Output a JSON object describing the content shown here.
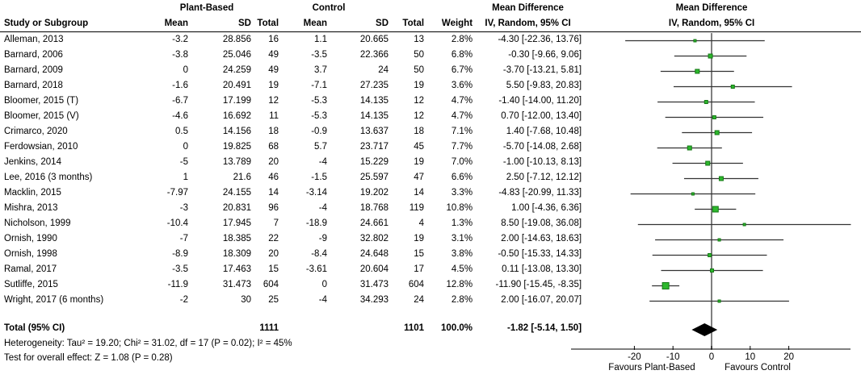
{
  "header": {
    "group1": "Plant-Based",
    "group2": "Control",
    "col_study": "Study or Subgroup",
    "col_mean": "Mean",
    "col_sd": "SD",
    "col_total": "Total",
    "col_weight": "Weight",
    "md_title": "Mean Difference",
    "md_sub": "IV, Random, 95% CI"
  },
  "chart_data": {
    "type": "forest",
    "effect_measure": "Mean Difference",
    "method": "IV, Random, 95% CI",
    "studies": [
      {
        "name": "Alleman, 2013",
        "mean1": "-3.2",
        "sd1": "28.856",
        "n1": "16",
        "mean2": "1.1",
        "sd2": "20.665",
        "n2": "13",
        "weight": "2.8%",
        "w": 2.8,
        "ci_text": "-4.30 [-22.36, 13.76]",
        "md": -4.3,
        "lo": -22.36,
        "hi": 13.76
      },
      {
        "name": "Barnard, 2006",
        "mean1": "-3.8",
        "sd1": "25.046",
        "n1": "49",
        "mean2": "-3.5",
        "sd2": "22.366",
        "n2": "50",
        "weight": "6.8%",
        "w": 6.8,
        "ci_text": "-0.30 [-9.66, 9.06]",
        "md": -0.3,
        "lo": -9.66,
        "hi": 9.06
      },
      {
        "name": "Barnard, 2009",
        "mean1": "0",
        "sd1": "24.259",
        "n1": "49",
        "mean2": "3.7",
        "sd2": "24",
        "n2": "50",
        "weight": "6.7%",
        "w": 6.7,
        "ci_text": "-3.70 [-13.21, 5.81]",
        "md": -3.7,
        "lo": -13.21,
        "hi": 5.81
      },
      {
        "name": "Barnard, 2018",
        "mean1": "-1.6",
        "sd1": "20.491",
        "n1": "19",
        "mean2": "-7.1",
        "sd2": "27.235",
        "n2": "19",
        "weight": "3.6%",
        "w": 3.6,
        "ci_text": "5.50 [-9.83, 20.83]",
        "md": 5.5,
        "lo": -9.83,
        "hi": 20.83
      },
      {
        "name": "Bloomer, 2015 (T)",
        "mean1": "-6.7",
        "sd1": "17.199",
        "n1": "12",
        "mean2": "-5.3",
        "sd2": "14.135",
        "n2": "12",
        "weight": "4.7%",
        "w": 4.7,
        "ci_text": "-1.40 [-14.00, 11.20]",
        "md": -1.4,
        "lo": -14.0,
        "hi": 11.2
      },
      {
        "name": "Bloomer, 2015 (V)",
        "mean1": "-4.6",
        "sd1": "16.692",
        "n1": "11",
        "mean2": "-5.3",
        "sd2": "14.135",
        "n2": "12",
        "weight": "4.7%",
        "w": 4.7,
        "ci_text": "0.70 [-12.00, 13.40]",
        "md": 0.7,
        "lo": -12.0,
        "hi": 13.4
      },
      {
        "name": "Crimarco, 2020",
        "mean1": "0.5",
        "sd1": "14.156",
        "n1": "18",
        "mean2": "-0.9",
        "sd2": "13.637",
        "n2": "18",
        "weight": "7.1%",
        "w": 7.1,
        "ci_text": "1.40 [-7.68, 10.48]",
        "md": 1.4,
        "lo": -7.68,
        "hi": 10.48
      },
      {
        "name": "Ferdowsian, 2010",
        "mean1": "0",
        "sd1": "19.825",
        "n1": "68",
        "mean2": "5.7",
        "sd2": "23.717",
        "n2": "45",
        "weight": "7.7%",
        "w": 7.7,
        "ci_text": "-5.70 [-14.08, 2.68]",
        "md": -5.7,
        "lo": -14.08,
        "hi": 2.68
      },
      {
        "name": "Jenkins, 2014",
        "mean1": "-5",
        "sd1": "13.789",
        "n1": "20",
        "mean2": "-4",
        "sd2": "15.229",
        "n2": "19",
        "weight": "7.0%",
        "w": 7.0,
        "ci_text": "-1.00 [-10.13, 8.13]",
        "md": -1.0,
        "lo": -10.13,
        "hi": 8.13
      },
      {
        "name": "Lee, 2016 (3 months)",
        "mean1": "1",
        "sd1": "21.6",
        "n1": "46",
        "mean2": "-1.5",
        "sd2": "25.597",
        "n2": "47",
        "weight": "6.6%",
        "w": 6.6,
        "ci_text": "2.50 [-7.12, 12.12]",
        "md": 2.5,
        "lo": -7.12,
        "hi": 12.12
      },
      {
        "name": "Macklin, 2015",
        "mean1": "-7.97",
        "sd1": "24.155",
        "n1": "14",
        "mean2": "-3.14",
        "sd2": "19.202",
        "n2": "14",
        "weight": "3.3%",
        "w": 3.3,
        "ci_text": "-4.83 [-20.99, 11.33]",
        "md": -4.83,
        "lo": -20.99,
        "hi": 11.33
      },
      {
        "name": "Mishra, 2013",
        "mean1": "-3",
        "sd1": "20.831",
        "n1": "96",
        "mean2": "-4",
        "sd2": "18.768",
        "n2": "119",
        "weight": "10.8%",
        "w": 10.8,
        "ci_text": "1.00 [-4.36, 6.36]",
        "md": 1.0,
        "lo": -4.36,
        "hi": 6.36
      },
      {
        "name": "Nicholson, 1999",
        "mean1": "-10.4",
        "sd1": "17.945",
        "n1": "7",
        "mean2": "-18.9",
        "sd2": "24.661",
        "n2": "4",
        "weight": "1.3%",
        "w": 1.3,
        "ci_text": "8.50 [-19.08, 36.08]",
        "md": 8.5,
        "lo": -19.08,
        "hi": 36.08
      },
      {
        "name": "Ornish, 1990",
        "mean1": "-7",
        "sd1": "18.385",
        "n1": "22",
        "mean2": "-9",
        "sd2": "32.802",
        "n2": "19",
        "weight": "3.1%",
        "w": 3.1,
        "ci_text": "2.00 [-14.63, 18.63]",
        "md": 2.0,
        "lo": -14.63,
        "hi": 18.63
      },
      {
        "name": "Ornish, 1998",
        "mean1": "-8.9",
        "sd1": "18.309",
        "n1": "20",
        "mean2": "-8.4",
        "sd2": "24.648",
        "n2": "15",
        "weight": "3.8%",
        "w": 3.8,
        "ci_text": "-0.50 [-15.33, 14.33]",
        "md": -0.5,
        "lo": -15.33,
        "hi": 14.33
      },
      {
        "name": "Ramal, 2017",
        "mean1": "-3.5",
        "sd1": "17.463",
        "n1": "15",
        "mean2": "-3.61",
        "sd2": "20.604",
        "n2": "17",
        "weight": "4.5%",
        "w": 4.5,
        "ci_text": "0.11 [-13.08, 13.30]",
        "md": 0.11,
        "lo": -13.08,
        "hi": 13.3
      },
      {
        "name": "Sutliffe, 2015",
        "mean1": "-11.9",
        "sd1": "31.473",
        "n1": "604",
        "mean2": "0",
        "sd2": "31.473",
        "n2": "604",
        "weight": "12.8%",
        "w": 12.8,
        "ci_text": "-11.90 [-15.45, -8.35]",
        "md": -11.9,
        "lo": -15.45,
        "hi": -8.35
      },
      {
        "name": "Wright, 2017 (6 months)",
        "mean1": "-2",
        "sd1": "30",
        "n1": "25",
        "mean2": "-4",
        "sd2": "34.293",
        "n2": "24",
        "weight": "2.8%",
        "w": 2.8,
        "ci_text": "2.00 [-16.07, 20.07]",
        "md": 2.0,
        "lo": -16.07,
        "hi": 20.07
      }
    ],
    "total": {
      "label": "Total (95% CI)",
      "n1": "1111",
      "n2": "1101",
      "weight": "100.0%",
      "ci_text": "-1.82 [-5.14, 1.50]",
      "md": -1.82,
      "lo": -5.14,
      "hi": 1.5
    },
    "heterogeneity": "Heterogeneity: Tau² = 19.20; Chi² = 31.02, df = 17 (P = 0.02); I² = 45%",
    "overall_effect": "Test for overall effect: Z = 1.08 (P = 0.28)",
    "axis": {
      "ticks": [
        -20,
        -10,
        0,
        10,
        20
      ],
      "range": [
        -36,
        36
      ],
      "favours_left": "Favours Plant-Based",
      "favours_right": "Favours Control"
    },
    "colors": {
      "marker": "#2db82d",
      "marker_border": "#157815",
      "ci_line": "#333333",
      "zero_line": "#808080",
      "axis_line": "#000000",
      "diamond": "#000000"
    }
  }
}
